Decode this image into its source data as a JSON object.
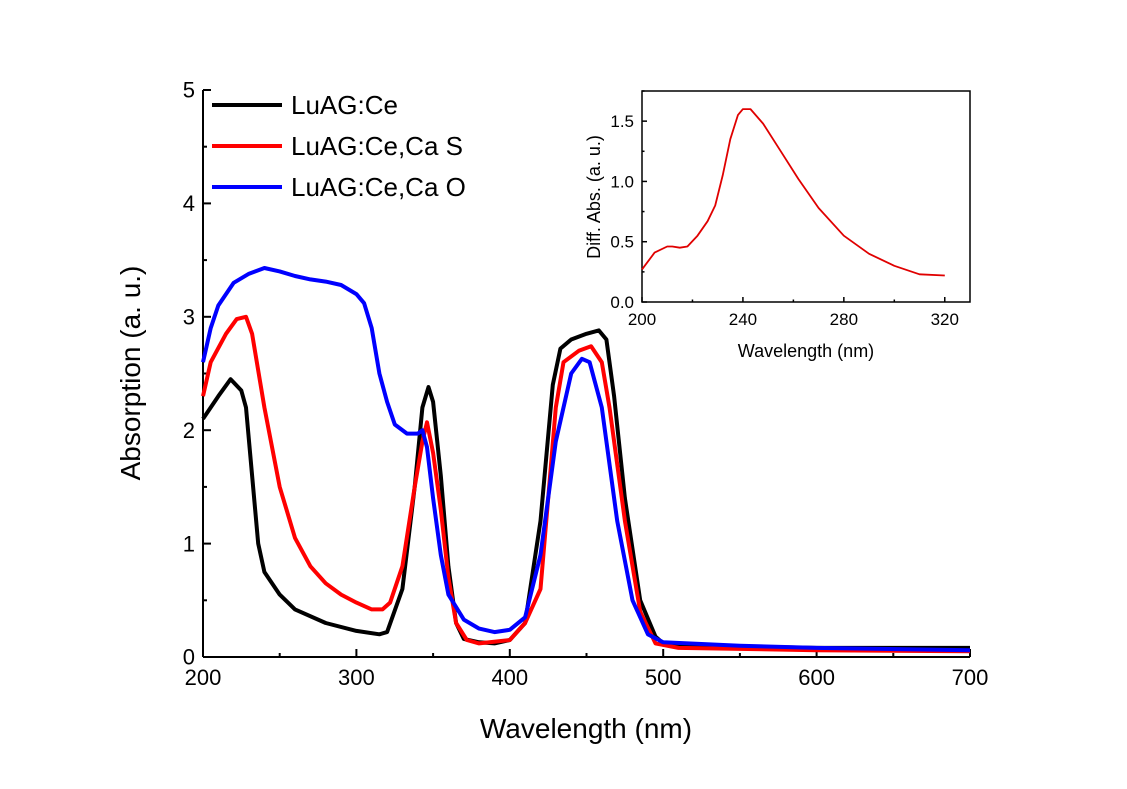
{
  "chart_data": [
    {
      "type": "line",
      "title": "",
      "xlabel": "Wavelength (nm)",
      "ylabel": "Absorption (a. u.)",
      "xlim": [
        200,
        700
      ],
      "ylim": [
        0,
        5
      ],
      "xticks": [
        200,
        300,
        400,
        500,
        600,
        700
      ],
      "yticks": [
        0,
        1,
        2,
        3,
        4,
        5
      ],
      "grid": false,
      "legend": "top-left",
      "series": [
        {
          "name": "LuAG:Ce",
          "color": "#000000",
          "x": [
            200,
            210,
            218,
            225,
            228,
            232,
            236,
            240,
            250,
            260,
            280,
            300,
            315,
            320,
            330,
            338,
            343,
            347,
            350,
            355,
            360,
            365,
            370,
            380,
            390,
            400,
            410,
            420,
            428,
            433,
            440,
            450,
            458,
            463,
            468,
            475,
            485,
            495,
            500,
            520,
            600,
            700
          ],
          "y": [
            2.1,
            2.3,
            2.45,
            2.35,
            2.2,
            1.6,
            1.0,
            0.75,
            0.55,
            0.42,
            0.3,
            0.23,
            0.2,
            0.22,
            0.6,
            1.5,
            2.2,
            2.38,
            2.25,
            1.6,
            0.8,
            0.3,
            0.16,
            0.13,
            0.12,
            0.15,
            0.3,
            1.2,
            2.4,
            2.72,
            2.8,
            2.85,
            2.88,
            2.8,
            2.3,
            1.4,
            0.5,
            0.18,
            0.12,
            0.1,
            0.08,
            0.08
          ]
        },
        {
          "name": "LuAG:Ce,Ca S",
          "color": "#ff0000",
          "x": [
            200,
            205,
            215,
            222,
            228,
            232,
            240,
            250,
            260,
            270,
            280,
            290,
            300,
            310,
            317,
            322,
            330,
            338,
            343,
            346,
            350,
            355,
            360,
            365,
            372,
            380,
            400,
            410,
            420,
            425,
            430,
            435,
            445,
            453,
            460,
            465,
            475,
            485,
            495,
            510,
            600,
            700
          ],
          "y": [
            2.3,
            2.6,
            2.85,
            2.98,
            3.0,
            2.85,
            2.2,
            1.5,
            1.05,
            0.8,
            0.65,
            0.55,
            0.48,
            0.42,
            0.42,
            0.48,
            0.8,
            1.5,
            1.9,
            2.07,
            1.8,
            1.3,
            0.7,
            0.3,
            0.15,
            0.12,
            0.15,
            0.3,
            0.6,
            1.4,
            2.2,
            2.6,
            2.7,
            2.74,
            2.6,
            2.2,
            1.2,
            0.4,
            0.12,
            0.08,
            0.06,
            0.05
          ]
        },
        {
          "name": "LuAG:Ce,Ca O",
          "color": "#0000ff",
          "x": [
            200,
            205,
            210,
            220,
            230,
            240,
            250,
            260,
            270,
            280,
            290,
            300,
            305,
            310,
            315,
            320,
            325,
            333,
            340,
            343,
            346,
            350,
            355,
            360,
            370,
            380,
            390,
            400,
            410,
            420,
            430,
            440,
            447,
            452,
            460,
            470,
            480,
            490,
            500,
            550,
            600,
            700
          ],
          "y": [
            2.6,
            2.9,
            3.1,
            3.3,
            3.38,
            3.43,
            3.4,
            3.36,
            3.33,
            3.31,
            3.28,
            3.2,
            3.12,
            2.9,
            2.5,
            2.25,
            2.05,
            1.97,
            1.97,
            2.0,
            1.85,
            1.4,
            0.9,
            0.55,
            0.33,
            0.25,
            0.22,
            0.24,
            0.35,
            0.9,
            1.9,
            2.5,
            2.63,
            2.6,
            2.2,
            1.2,
            0.5,
            0.2,
            0.13,
            0.1,
            0.08,
            0.06
          ]
        }
      ]
    },
    {
      "type": "line",
      "title": "",
      "xlabel": "Wavelength (nm)",
      "ylabel": "Diff. Abs. (a. u.)",
      "xlim": [
        200,
        330
      ],
      "ylim": [
        0,
        1.75
      ],
      "xticks": [
        200,
        240,
        280,
        320
      ],
      "yticks": [
        0.0,
        0.5,
        1.0,
        1.5
      ],
      "grid": false,
      "series": [
        {
          "color": "#e00000",
          "x": [
            200,
            205,
            210,
            212,
            215,
            218,
            222,
            226,
            229,
            232,
            235,
            238,
            240,
            243,
            248,
            255,
            262,
            270,
            280,
            290,
            300,
            310,
            320
          ],
          "y": [
            0.27,
            0.41,
            0.46,
            0.46,
            0.45,
            0.46,
            0.55,
            0.67,
            0.8,
            1.05,
            1.35,
            1.55,
            1.6,
            1.6,
            1.48,
            1.25,
            1.02,
            0.78,
            0.55,
            0.4,
            0.3,
            0.23,
            0.22
          ]
        }
      ]
    }
  ]
}
